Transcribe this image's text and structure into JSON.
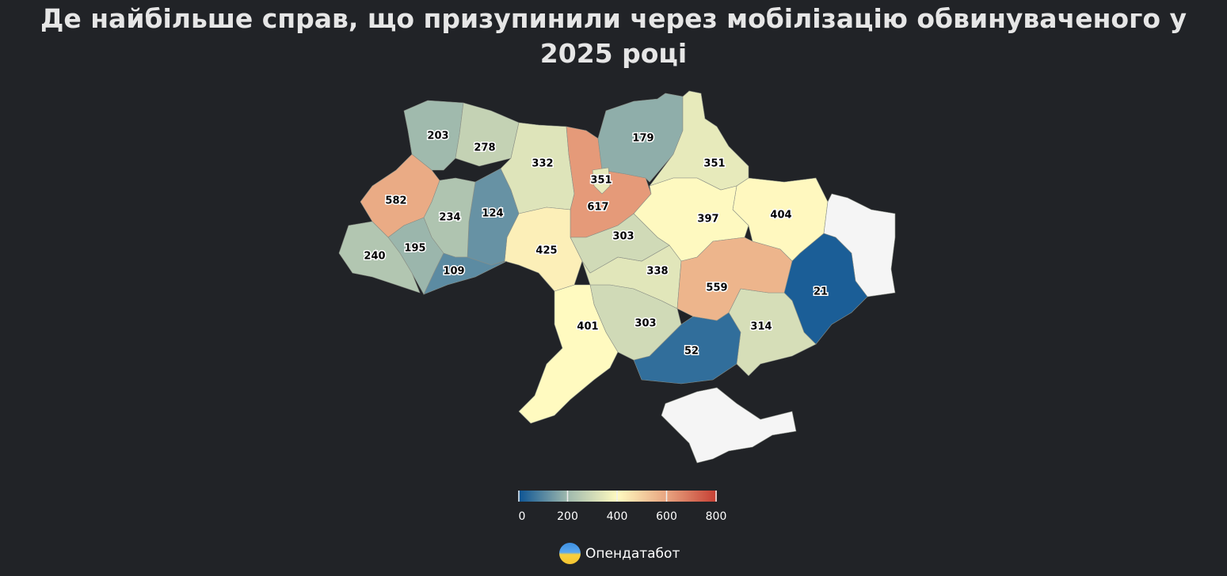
{
  "title": "Де найбільше справ, що призупинили через мобілізацію обвинуваченого у 2025 році",
  "chart_data": {
    "type": "choropleth",
    "title": "Де найбільше справ, що призупинили через мобілізацію обвинуваченого у 2025 році",
    "regions": [
      {
        "id": "volyn",
        "value": 203
      },
      {
        "id": "rivne",
        "value": 278
      },
      {
        "id": "zhytomyr",
        "value": 332
      },
      {
        "id": "kyiv-oblast",
        "value": 617
      },
      {
        "id": "kyiv-city",
        "value": 351
      },
      {
        "id": "chernihiv",
        "value": 179
      },
      {
        "id": "sumy",
        "value": 351
      },
      {
        "id": "kharkiv",
        "value": 404
      },
      {
        "id": "poltava",
        "value": 397
      },
      {
        "id": "luhansk",
        "value": null
      },
      {
        "id": "donetsk",
        "value": 21
      },
      {
        "id": "zaporizhzhia",
        "value": 314
      },
      {
        "id": "kherson",
        "value": 52
      },
      {
        "id": "crimea",
        "value": null
      },
      {
        "id": "mykolaiv",
        "value": 303
      },
      {
        "id": "odesa",
        "value": 401
      },
      {
        "id": "kirovohrad",
        "value": 338
      },
      {
        "id": "cherkasy",
        "value": 303
      },
      {
        "id": "vinnytsia",
        "value": 425
      },
      {
        "id": "khmelnytskyi",
        "value": 124
      },
      {
        "id": "ternopil",
        "value": 234
      },
      {
        "id": "lviv",
        "value": 582
      },
      {
        "id": "ivano-frankivsk",
        "value": 195
      },
      {
        "id": "zakarpattia",
        "value": 240
      },
      {
        "id": "chernivtsi",
        "value": 109
      },
      {
        "id": "dnipropetrovsk",
        "value": 559
      }
    ],
    "color_scale": {
      "domain": [
        0,
        200,
        400,
        600,
        800
      ],
      "colors": [
        "#0b5394",
        "#9fb9ad",
        "#fffac0",
        "#e8a37f",
        "#c53e33"
      ],
      "no_data_color": "#f5f5f5"
    },
    "legend": {
      "ticks": [
        "0",
        "200",
        "400",
        "600",
        "800"
      ],
      "placement": "bottom-center"
    }
  },
  "brand": {
    "name": "Опендатабот"
  },
  "colors": {
    "background": "#212327",
    "title": "#e6e6e6"
  }
}
